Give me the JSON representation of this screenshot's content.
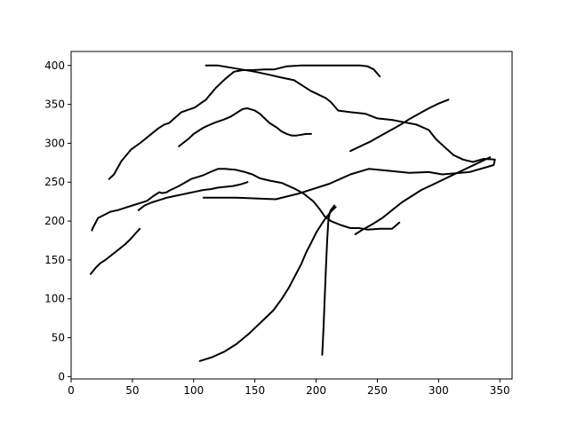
{
  "chart_data": {
    "type": "line",
    "title": "",
    "xlabel": "",
    "ylabel": "",
    "xlim": [
      0,
      360
    ],
    "ylim": [
      -3,
      418
    ],
    "grid": false,
    "x_ticks": [
      0,
      50,
      100,
      150,
      200,
      250,
      300,
      350
    ],
    "y_ticks": [
      0,
      50,
      100,
      150,
      200,
      250,
      300,
      350,
      400
    ],
    "line_color": "#000000",
    "series": [
      {
        "x": [
          110,
          120,
          135,
          150,
          162,
          170,
          182,
          188,
          196,
          200,
          208,
          212,
          218,
          228,
          240,
          250,
          262,
          272,
          282,
          292,
          298,
          305,
          312,
          320,
          328,
          337,
          346,
          345,
          325,
          303,
          292,
          276,
          257,
          243,
          228,
          211,
          185,
          167,
          135,
          108
        ],
        "y": [
          400,
          400,
          396,
          392,
          388,
          385,
          381,
          375,
          367,
          364,
          358,
          353,
          342,
          340,
          338,
          332,
          330,
          327,
          324,
          317,
          305,
          295,
          285,
          279,
          276,
          280,
          279,
          272,
          263,
          260,
          263,
          262,
          265,
          267,
          260,
          248,
          235,
          228,
          230,
          230
        ]
      },
      {
        "x": [
          31,
          35,
          41,
          49,
          57,
          71,
          76,
          80,
          90,
          101,
          110,
          118,
          126,
          133,
          140,
          148,
          158,
          166,
          176,
          188,
          199,
          209,
          214,
          220,
          227,
          236,
          242,
          247,
          252
        ],
        "y": [
          254,
          260,
          277,
          292,
          301,
          319,
          324,
          326,
          340,
          346,
          356,
          371,
          383,
          392,
          394,
          394,
          395,
          395,
          399,
          400,
          400,
          400,
          400,
          400,
          400,
          400,
          399,
          395,
          386
        ]
      },
      {
        "x": [
          17,
          18,
          20,
          22,
          26,
          32,
          38,
          44,
          50,
          56,
          62,
          67,
          70,
          72,
          74,
          75,
          78,
          80,
          88,
          98,
          108,
          115,
          120,
          126,
          134,
          142,
          148,
          154,
          162,
          172,
          182,
          190,
          198,
          203,
          207,
          212,
          220,
          228,
          235,
          242,
          252,
          262,
          268
        ],
        "y": [
          188,
          192,
          198,
          204,
          207,
          212,
          214,
          217,
          220,
          223,
          226,
          232,
          235,
          237,
          236,
          236,
          237,
          239,
          245,
          254,
          259,
          264,
          267,
          267,
          266,
          263,
          260,
          255,
          252,
          249,
          242,
          235,
          225,
          215,
          206,
          200,
          195,
          191,
          191,
          189,
          190,
          190,
          198
        ]
      },
      {
        "x": [
          88,
          92,
          96,
          100,
          104,
          108,
          112,
          118,
          124,
          130,
          136,
          140,
          144,
          146,
          150,
          154,
          158,
          162,
          168,
          172,
          176,
          180,
          184,
          188,
          192,
          196
        ],
        "y": [
          296,
          301,
          306,
          312,
          316,
          320,
          323,
          327,
          330,
          334,
          340,
          344,
          345,
          344,
          342,
          338,
          332,
          326,
          320,
          315,
          312,
          310,
          310,
          311,
          312,
          312
        ]
      },
      {
        "x": [
          55,
          60,
          66,
          72,
          78,
          84,
          90,
          96,
          102,
          108,
          114,
          120,
          126,
          132,
          138,
          144
        ],
        "y": [
          214,
          220,
          224,
          227,
          230,
          232,
          234,
          236,
          238,
          240,
          241,
          243,
          244,
          245,
          247,
          250
        ]
      },
      {
        "x": [
          16,
          18,
          20,
          24,
          28,
          32,
          36,
          40,
          44,
          48,
          52,
          56
        ],
        "y": [
          132,
          136,
          140,
          146,
          150,
          155,
          160,
          165,
          170,
          176,
          183,
          190
        ]
      },
      {
        "x": [
          105,
          115,
          125,
          135,
          145,
          155,
          165,
          172,
          178,
          183,
          188,
          192,
          196,
          200,
          204,
          207,
          210,
          212,
          214,
          216
        ],
        "y": [
          20,
          25,
          32,
          42,
          55,
          70,
          85,
          100,
          115,
          130,
          145,
          160,
          172,
          185,
          195,
          202,
          208,
          212,
          215,
          218
        ]
      },
      {
        "x": [
          205,
          206,
          207,
          208,
          209,
          210,
          211,
          212,
          213,
          214,
          215
        ],
        "y": [
          28,
          60,
          100,
          140,
          175,
          200,
          210,
          214,
          216,
          218,
          220
        ]
      },
      {
        "x": [
          232,
          238,
          246,
          254,
          262,
          270,
          278,
          286,
          294,
          302,
          310,
          318,
          326,
          334,
          342
        ],
        "y": [
          183,
          189,
          196,
          204,
          214,
          224,
          232,
          240,
          246,
          252,
          258,
          264,
          270,
          276,
          282
        ]
      },
      {
        "x": [
          228,
          236,
          244,
          252,
          260,
          268,
          276,
          284,
          292,
          300,
          308
        ],
        "y": [
          290,
          296,
          302,
          309,
          316,
          323,
          331,
          338,
          345,
          351,
          356
        ]
      }
    ]
  }
}
